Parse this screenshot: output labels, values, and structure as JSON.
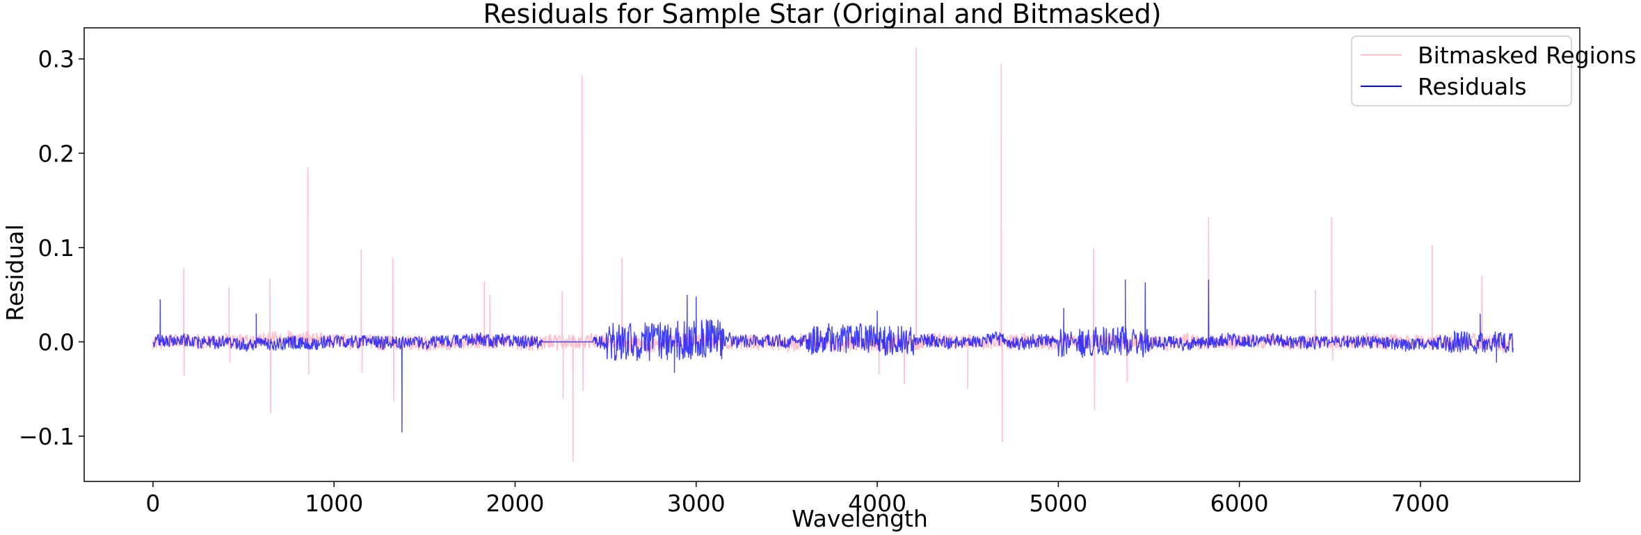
{
  "chart_data": {
    "type": "line",
    "title": "Residuals for Sample Star (Original and Bitmasked)",
    "xlabel": "Wavelength",
    "ylabel": "Residual",
    "xlim": [
      -380,
      7880
    ],
    "ylim": [
      -0.148,
      0.333
    ],
    "xticks": [
      0,
      1000,
      2000,
      3000,
      4000,
      5000,
      6000,
      7000
    ],
    "xtick_labels": [
      "0",
      "1000",
      "2000",
      "3000",
      "4000",
      "5000",
      "6000",
      "7000"
    ],
    "yticks": [
      -0.1,
      0.0,
      0.1,
      0.2,
      0.3
    ],
    "ytick_labels": [
      "−0.1",
      "0.0",
      "0.1",
      "0.2",
      "0.3"
    ],
    "grid": false,
    "legend_position": "top-right",
    "series": [
      {
        "name": "Bitmasked Regions",
        "color": "#ffc0cb",
        "x_range": [
          0,
          7514
        ],
        "baseline_noise": 0.008,
        "spikes": [
          {
            "x": 170,
            "y": 0.078
          },
          {
            "x": 172,
            "y": -0.036
          },
          {
            "x": 420,
            "y": 0.058
          },
          {
            "x": 425,
            "y": -0.022
          },
          {
            "x": 645,
            "y": 0.067
          },
          {
            "x": 650,
            "y": -0.076
          },
          {
            "x": 855,
            "y": 0.185
          },
          {
            "x": 860,
            "y": -0.035
          },
          {
            "x": 1150,
            "y": 0.098
          },
          {
            "x": 1155,
            "y": -0.033
          },
          {
            "x": 1325,
            "y": 0.089
          },
          {
            "x": 1330,
            "y": -0.063
          },
          {
            "x": 1830,
            "y": 0.064
          },
          {
            "x": 1860,
            "y": 0.05
          },
          {
            "x": 2260,
            "y": 0.054
          },
          {
            "x": 2265,
            "y": -0.06
          },
          {
            "x": 2320,
            "y": -0.127
          },
          {
            "x": 2370,
            "y": 0.283
          },
          {
            "x": 2375,
            "y": -0.052
          },
          {
            "x": 2590,
            "y": 0.089
          },
          {
            "x": 4010,
            "y": -0.035
          },
          {
            "x": 4150,
            "y": -0.045
          },
          {
            "x": 4215,
            "y": 0.312
          },
          {
            "x": 4500,
            "y": -0.05
          },
          {
            "x": 4685,
            "y": 0.295
          },
          {
            "x": 4690,
            "y": -0.106
          },
          {
            "x": 5195,
            "y": 0.099
          },
          {
            "x": 5200,
            "y": -0.072
          },
          {
            "x": 5380,
            "y": -0.043
          },
          {
            "x": 5830,
            "y": 0.132
          },
          {
            "x": 6420,
            "y": 0.055
          },
          {
            "x": 6510,
            "y": 0.132
          },
          {
            "x": 6515,
            "y": -0.02
          },
          {
            "x": 7065,
            "y": 0.103
          },
          {
            "x": 7340,
            "y": 0.07
          }
        ]
      },
      {
        "name": "Residuals",
        "color": "#0000ff",
        "x_range": [
          0,
          7514
        ],
        "baseline_noise": 0.007,
        "flat_segment": [
          2150,
          2430
        ],
        "noisy_segments": [
          {
            "x": [
              2500,
              3150
            ],
            "amplitude": 0.022
          },
          {
            "x": [
              3600,
              4200
            ],
            "amplitude": 0.016
          },
          {
            "x": [
              5000,
              5500
            ],
            "amplitude": 0.016
          },
          {
            "x": [
              7100,
              7514
            ],
            "amplitude": 0.012
          }
        ],
        "spikes": [
          {
            "x": 40,
            "y": 0.045
          },
          {
            "x": 570,
            "y": 0.03
          },
          {
            "x": 1375,
            "y": -0.096
          },
          {
            "x": 2950,
            "y": 0.05
          },
          {
            "x": 2880,
            "y": -0.033
          },
          {
            "x": 3000,
            "y": 0.048
          },
          {
            "x": 4000,
            "y": 0.033
          },
          {
            "x": 5030,
            "y": 0.036
          },
          {
            "x": 5370,
            "y": 0.066
          },
          {
            "x": 5480,
            "y": 0.063
          },
          {
            "x": 5830,
            "y": 0.066
          },
          {
            "x": 7330,
            "y": 0.03
          },
          {
            "x": 7420,
            "y": -0.022
          }
        ]
      }
    ]
  }
}
